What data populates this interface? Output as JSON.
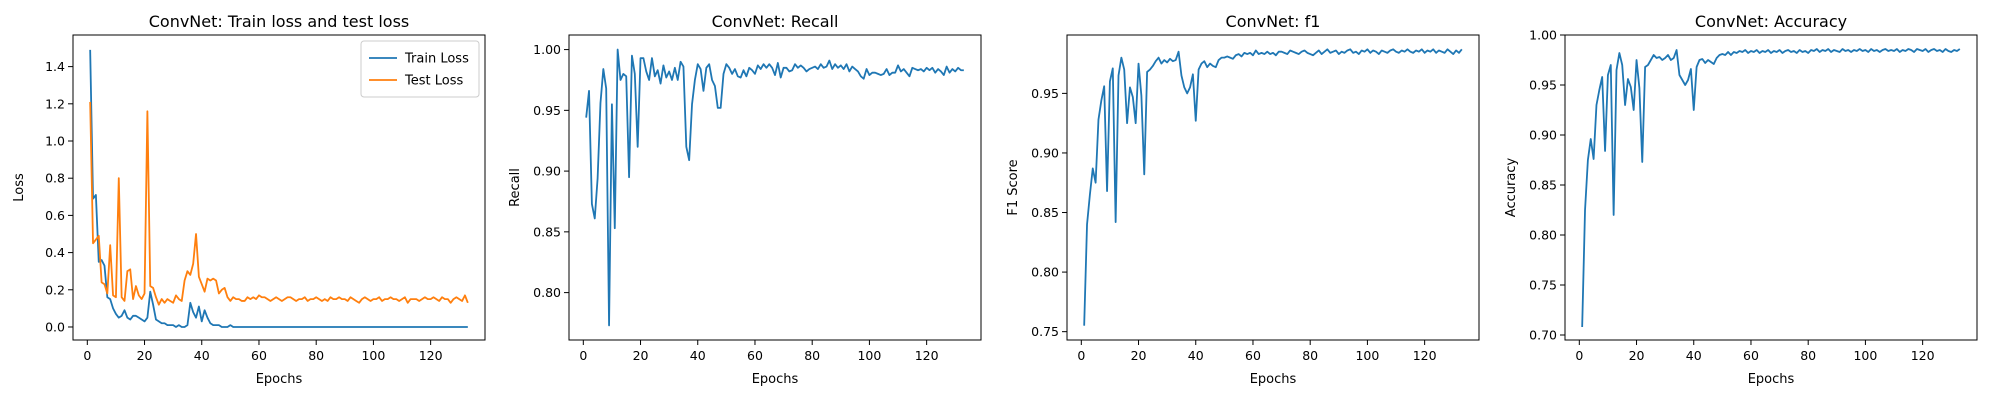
{
  "colors": {
    "train": "#1f77b4",
    "test": "#ff7f0e",
    "single": "#1f77b4"
  },
  "chart_data": [
    {
      "type": "line",
      "title": "ConvNet: Train loss and test loss",
      "xlabel": "Epochs",
      "ylabel": "Loss",
      "xlim": [
        -5,
        139
      ],
      "ylim": [
        -0.07,
        1.57
      ],
      "xticks": [
        0,
        20,
        40,
        60,
        80,
        100,
        120
      ],
      "yticks": [
        0.0,
        0.2,
        0.4,
        0.6,
        0.8,
        1.0,
        1.2,
        1.4
      ],
      "tick_decimals": 1,
      "legend": "top-right",
      "grid": false,
      "series": [
        {
          "name": "Train Loss",
          "color_key": "train",
          "x_start": 1,
          "values": [
            1.49,
            0.69,
            0.71,
            0.35,
            0.36,
            0.33,
            0.16,
            0.15,
            0.1,
            0.07,
            0.05,
            0.06,
            0.09,
            0.05,
            0.04,
            0.06,
            0.06,
            0.05,
            0.04,
            0.03,
            0.05,
            0.19,
            0.12,
            0.04,
            0.03,
            0.02,
            0.02,
            0.01,
            0.01,
            0.01,
            0.0,
            0.01,
            0.0,
            0.0,
            0.01,
            0.13,
            0.08,
            0.05,
            0.11,
            0.03,
            0.09,
            0.05,
            0.02,
            0.01,
            0.01,
            0.01,
            0.0,
            0.0,
            0.0,
            0.01,
            0.0,
            0.0,
            0.0,
            0.0,
            0.0,
            0.0,
            0.0,
            0.0,
            0.0,
            0.0,
            0.0,
            0.0,
            0.0,
            0.0,
            0.0,
            0.0,
            0.0,
            0.0,
            0.0,
            0.0,
            0.0,
            0.0,
            0.0,
            0.0,
            0.0,
            0.0,
            0.0,
            0.0,
            0.0,
            0.0,
            0.0,
            0.0,
            0.0,
            0.0,
            0.0,
            0.0,
            0.0,
            0.0,
            0.0,
            0.0,
            0.0,
            0.0,
            0.0,
            0.0,
            0.0,
            0.0,
            0.0,
            0.0,
            0.0,
            0.0,
            0.0,
            0.0,
            0.0,
            0.0,
            0.0,
            0.0,
            0.0,
            0.0,
            0.0,
            0.0,
            0.0,
            0.0,
            0.0,
            0.0,
            0.0,
            0.0,
            0.0,
            0.0,
            0.0,
            0.0,
            0.0,
            0.0,
            0.0,
            0.0,
            0.0,
            0.0,
            0.0,
            0.0,
            0.0,
            0.0,
            0.0,
            0.0,
            0.0
          ]
        },
        {
          "name": "Test Loss",
          "color_key": "test",
          "x_start": 1,
          "values": [
            1.21,
            0.45,
            0.47,
            0.49,
            0.24,
            0.23,
            0.18,
            0.44,
            0.17,
            0.16,
            0.8,
            0.16,
            0.14,
            0.3,
            0.31,
            0.15,
            0.22,
            0.17,
            0.15,
            0.18,
            1.16,
            0.22,
            0.21,
            0.16,
            0.12,
            0.15,
            0.13,
            0.15,
            0.14,
            0.13,
            0.17,
            0.15,
            0.14,
            0.25,
            0.3,
            0.28,
            0.34,
            0.5,
            0.27,
            0.23,
            0.19,
            0.26,
            0.25,
            0.26,
            0.25,
            0.18,
            0.2,
            0.21,
            0.16,
            0.14,
            0.16,
            0.15,
            0.15,
            0.14,
            0.14,
            0.16,
            0.15,
            0.16,
            0.15,
            0.17,
            0.16,
            0.16,
            0.15,
            0.14,
            0.15,
            0.16,
            0.15,
            0.14,
            0.15,
            0.16,
            0.16,
            0.15,
            0.14,
            0.15,
            0.15,
            0.16,
            0.14,
            0.15,
            0.15,
            0.16,
            0.15,
            0.14,
            0.15,
            0.14,
            0.16,
            0.15,
            0.15,
            0.16,
            0.15,
            0.15,
            0.14,
            0.16,
            0.15,
            0.14,
            0.13,
            0.15,
            0.16,
            0.15,
            0.14,
            0.15,
            0.15,
            0.16,
            0.14,
            0.15,
            0.15,
            0.16,
            0.15,
            0.15,
            0.14,
            0.15,
            0.16,
            0.13,
            0.15,
            0.15,
            0.15,
            0.14,
            0.15,
            0.16,
            0.15,
            0.15,
            0.16,
            0.15,
            0.14,
            0.16,
            0.15,
            0.15,
            0.13,
            0.15,
            0.16,
            0.15,
            0.14,
            0.17,
            0.13
          ]
        }
      ]
    },
    {
      "type": "line",
      "title": "ConvNet: Recall",
      "xlabel": "Epochs",
      "ylabel": "Recall",
      "xlim": [
        -5,
        139
      ],
      "ylim": [
        0.761,
        1.012
      ],
      "xticks": [
        0,
        20,
        40,
        60,
        80,
        100,
        120
      ],
      "yticks": [
        0.8,
        0.85,
        0.9,
        0.95,
        1.0
      ],
      "tick_decimals": 2,
      "grid": false,
      "series": [
        {
          "color_key": "single",
          "x_start": 1,
          "values": [
            0.944,
            0.966,
            0.873,
            0.861,
            0.894,
            0.956,
            0.984,
            0.968,
            0.773,
            0.955,
            0.853,
            1.0,
            0.975,
            0.98,
            0.978,
            0.895,
            0.995,
            0.98,
            0.92,
            0.993,
            0.993,
            0.982,
            0.975,
            0.993,
            0.978,
            0.983,
            0.972,
            0.987,
            0.977,
            0.982,
            0.975,
            0.985,
            0.975,
            0.99,
            0.986,
            0.92,
            0.909,
            0.955,
            0.975,
            0.988,
            0.984,
            0.966,
            0.985,
            0.988,
            0.975,
            0.97,
            0.952,
            0.952,
            0.98,
            0.988,
            0.985,
            0.98,
            0.984,
            0.978,
            0.977,
            0.983,
            0.978,
            0.985,
            0.983,
            0.98,
            0.987,
            0.984,
            0.988,
            0.985,
            0.988,
            0.985,
            0.979,
            0.989,
            0.977,
            0.985,
            0.985,
            0.982,
            0.983,
            0.988,
            0.985,
            0.987,
            0.985,
            0.982,
            0.984,
            0.985,
            0.986,
            0.984,
            0.988,
            0.985,
            0.986,
            0.991,
            0.984,
            0.988,
            0.985,
            0.987,
            0.984,
            0.988,
            0.982,
            0.986,
            0.984,
            0.982,
            0.978,
            0.976,
            0.984,
            0.979,
            0.981,
            0.981,
            0.98,
            0.979,
            0.98,
            0.984,
            0.979,
            0.981,
            0.981,
            0.987,
            0.982,
            0.984,
            0.981,
            0.978,
            0.985,
            0.984,
            0.983,
            0.984,
            0.982,
            0.985,
            0.983,
            0.985,
            0.981,
            0.984,
            0.982,
            0.979,
            0.986,
            0.981,
            0.984,
            0.982,
            0.985,
            0.983,
            0.983
          ]
        }
      ]
    },
    {
      "type": "line",
      "title": "ConvNet: f1",
      "xlabel": "Epochs",
      "ylabel": "F1 Score",
      "xlim": [
        -5,
        139
      ],
      "ylim": [
        0.743,
        0.999
      ],
      "xticks": [
        0,
        20,
        40,
        60,
        80,
        100,
        120
      ],
      "yticks": [
        0.75,
        0.8,
        0.85,
        0.9,
        0.95
      ],
      "tick_decimals": 2,
      "grid": false,
      "series": [
        {
          "color_key": "single",
          "x_start": 1,
          "values": [
            0.755,
            0.84,
            0.865,
            0.887,
            0.875,
            0.928,
            0.944,
            0.956,
            0.868,
            0.96,
            0.971,
            0.842,
            0.965,
            0.98,
            0.97,
            0.925,
            0.955,
            0.947,
            0.925,
            0.975,
            0.948,
            0.882,
            0.968,
            0.97,
            0.973,
            0.977,
            0.98,
            0.975,
            0.978,
            0.976,
            0.979,
            0.977,
            0.978,
            0.985,
            0.965,
            0.955,
            0.95,
            0.955,
            0.966,
            0.927,
            0.97,
            0.975,
            0.977,
            0.972,
            0.975,
            0.973,
            0.972,
            0.978,
            0.98,
            0.98,
            0.981,
            0.98,
            0.979,
            0.982,
            0.983,
            0.981,
            0.984,
            0.983,
            0.984,
            0.982,
            0.986,
            0.983,
            0.984,
            0.983,
            0.985,
            0.983,
            0.984,
            0.982,
            0.985,
            0.985,
            0.984,
            0.983,
            0.986,
            0.985,
            0.984,
            0.983,
            0.985,
            0.986,
            0.984,
            0.983,
            0.982,
            0.984,
            0.986,
            0.983,
            0.985,
            0.987,
            0.984,
            0.985,
            0.986,
            0.983,
            0.985,
            0.984,
            0.986,
            0.987,
            0.984,
            0.985,
            0.983,
            0.986,
            0.985,
            0.987,
            0.984,
            0.986,
            0.985,
            0.983,
            0.986,
            0.985,
            0.984,
            0.986,
            0.987,
            0.985,
            0.984,
            0.986,
            0.985,
            0.987,
            0.985,
            0.984,
            0.986,
            0.985,
            0.987,
            0.984,
            0.986,
            0.985,
            0.987,
            0.984,
            0.986,
            0.985,
            0.984,
            0.987,
            0.985,
            0.983,
            0.986,
            0.984,
            0.987
          ]
        }
      ]
    },
    {
      "type": "line",
      "title": "ConvNet: Accuracy",
      "xlabel": "Epochs",
      "ylabel": "Accuracy",
      "xlim": [
        -5,
        139
      ],
      "ylim": [
        0.695,
        1.0
      ],
      "xticks": [
        0,
        20,
        40,
        60,
        80,
        100,
        120
      ],
      "yticks": [
        0.7,
        0.75,
        0.8,
        0.85,
        0.9,
        0.95,
        1.0
      ],
      "tick_decimals": 2,
      "grid": false,
      "series": [
        {
          "color_key": "single",
          "x_start": 1,
          "values": [
            0.708,
            0.825,
            0.875,
            0.896,
            0.876,
            0.93,
            0.945,
            0.958,
            0.884,
            0.96,
            0.97,
            0.82,
            0.965,
            0.982,
            0.97,
            0.93,
            0.956,
            0.948,
            0.925,
            0.975,
            0.947,
            0.873,
            0.968,
            0.97,
            0.975,
            0.98,
            0.977,
            0.978,
            0.975,
            0.977,
            0.98,
            0.975,
            0.977,
            0.985,
            0.96,
            0.955,
            0.95,
            0.955,
            0.966,
            0.925,
            0.968,
            0.975,
            0.976,
            0.972,
            0.975,
            0.973,
            0.971,
            0.977,
            0.98,
            0.981,
            0.98,
            0.983,
            0.98,
            0.983,
            0.982,
            0.984,
            0.983,
            0.985,
            0.982,
            0.984,
            0.983,
            0.985,
            0.982,
            0.984,
            0.983,
            0.985,
            0.982,
            0.984,
            0.983,
            0.985,
            0.982,
            0.984,
            0.985,
            0.983,
            0.984,
            0.982,
            0.985,
            0.983,
            0.984,
            0.982,
            0.985,
            0.984,
            0.986,
            0.983,
            0.985,
            0.984,
            0.986,
            0.983,
            0.985,
            0.984,
            0.983,
            0.986,
            0.984,
            0.985,
            0.983,
            0.985,
            0.984,
            0.986,
            0.984,
            0.985,
            0.983,
            0.986,
            0.984,
            0.985,
            0.983,
            0.985,
            0.986,
            0.984,
            0.985,
            0.984,
            0.986,
            0.983,
            0.985,
            0.984,
            0.986,
            0.985,
            0.983,
            0.986,
            0.985,
            0.984,
            0.986,
            0.983,
            0.985,
            0.986,
            0.984,
            0.985,
            0.983,
            0.986,
            0.984,
            0.983,
            0.985,
            0.984,
            0.986
          ]
        }
      ]
    }
  ]
}
